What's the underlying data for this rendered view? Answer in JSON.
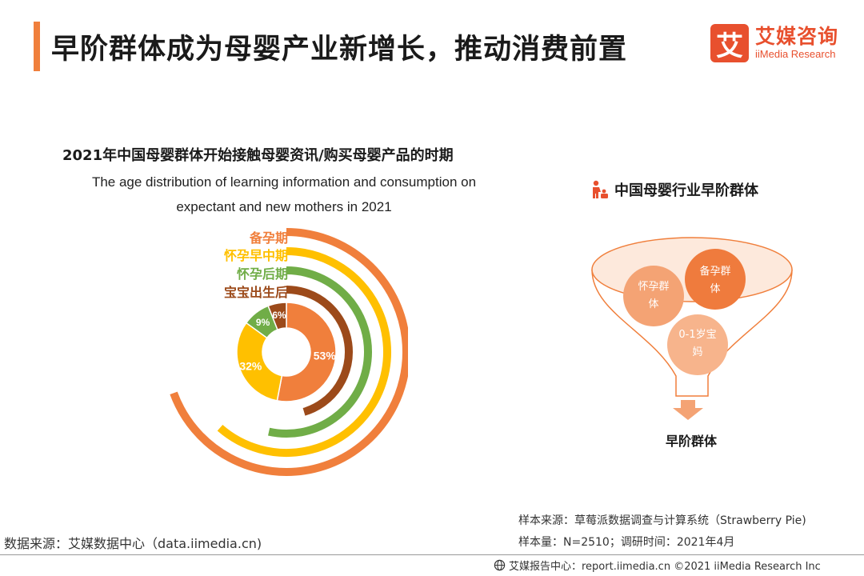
{
  "header": {
    "title": "早阶群体成为母婴产业新增长，推动消费前置",
    "logo_mark": "艾",
    "logo_cn": "艾媒咨询",
    "logo_en": "iiMedia Research"
  },
  "chart_data": {
    "type": "pie",
    "title": "2021年中国母婴群体开始接触母婴资讯/购买母婴产品的时期",
    "subtitle_line1": "The age distribution of learning information and consumption on",
    "subtitle_line2": "expectant and new mothers in 2021",
    "categories": [
      "备孕期",
      "怀孕早中期",
      "怀孕后期",
      "宝宝出生后"
    ],
    "values": [
      53,
      32,
      9,
      6
    ],
    "value_labels": [
      "53%",
      "32%",
      "9%",
      "6%"
    ],
    "colors": [
      "#f07f3c",
      "#ffc000",
      "#70ad47",
      "#9c4a1a"
    ],
    "legend_placement": "top-left of rings"
  },
  "side": {
    "title": "中国母婴行业早阶群体",
    "icon": "mother-baby-icon",
    "circles": [
      "备孕群体",
      "怀孕群体",
      "0-1岁宝妈"
    ],
    "funnel_label": "早阶群体"
  },
  "source": {
    "left": "数据来源：艾媒数据中心（data.iimedia.cn)",
    "sample_source": "样本来源：草莓派数据调查与计算系统（Strawberry Pie)",
    "sample_size": "样本量：N=2510；调研时间：2021年4月"
  },
  "footer": {
    "text": "艾媒报告中心：report.iimedia.cn  ©2021  iiMedia Research  Inc"
  }
}
